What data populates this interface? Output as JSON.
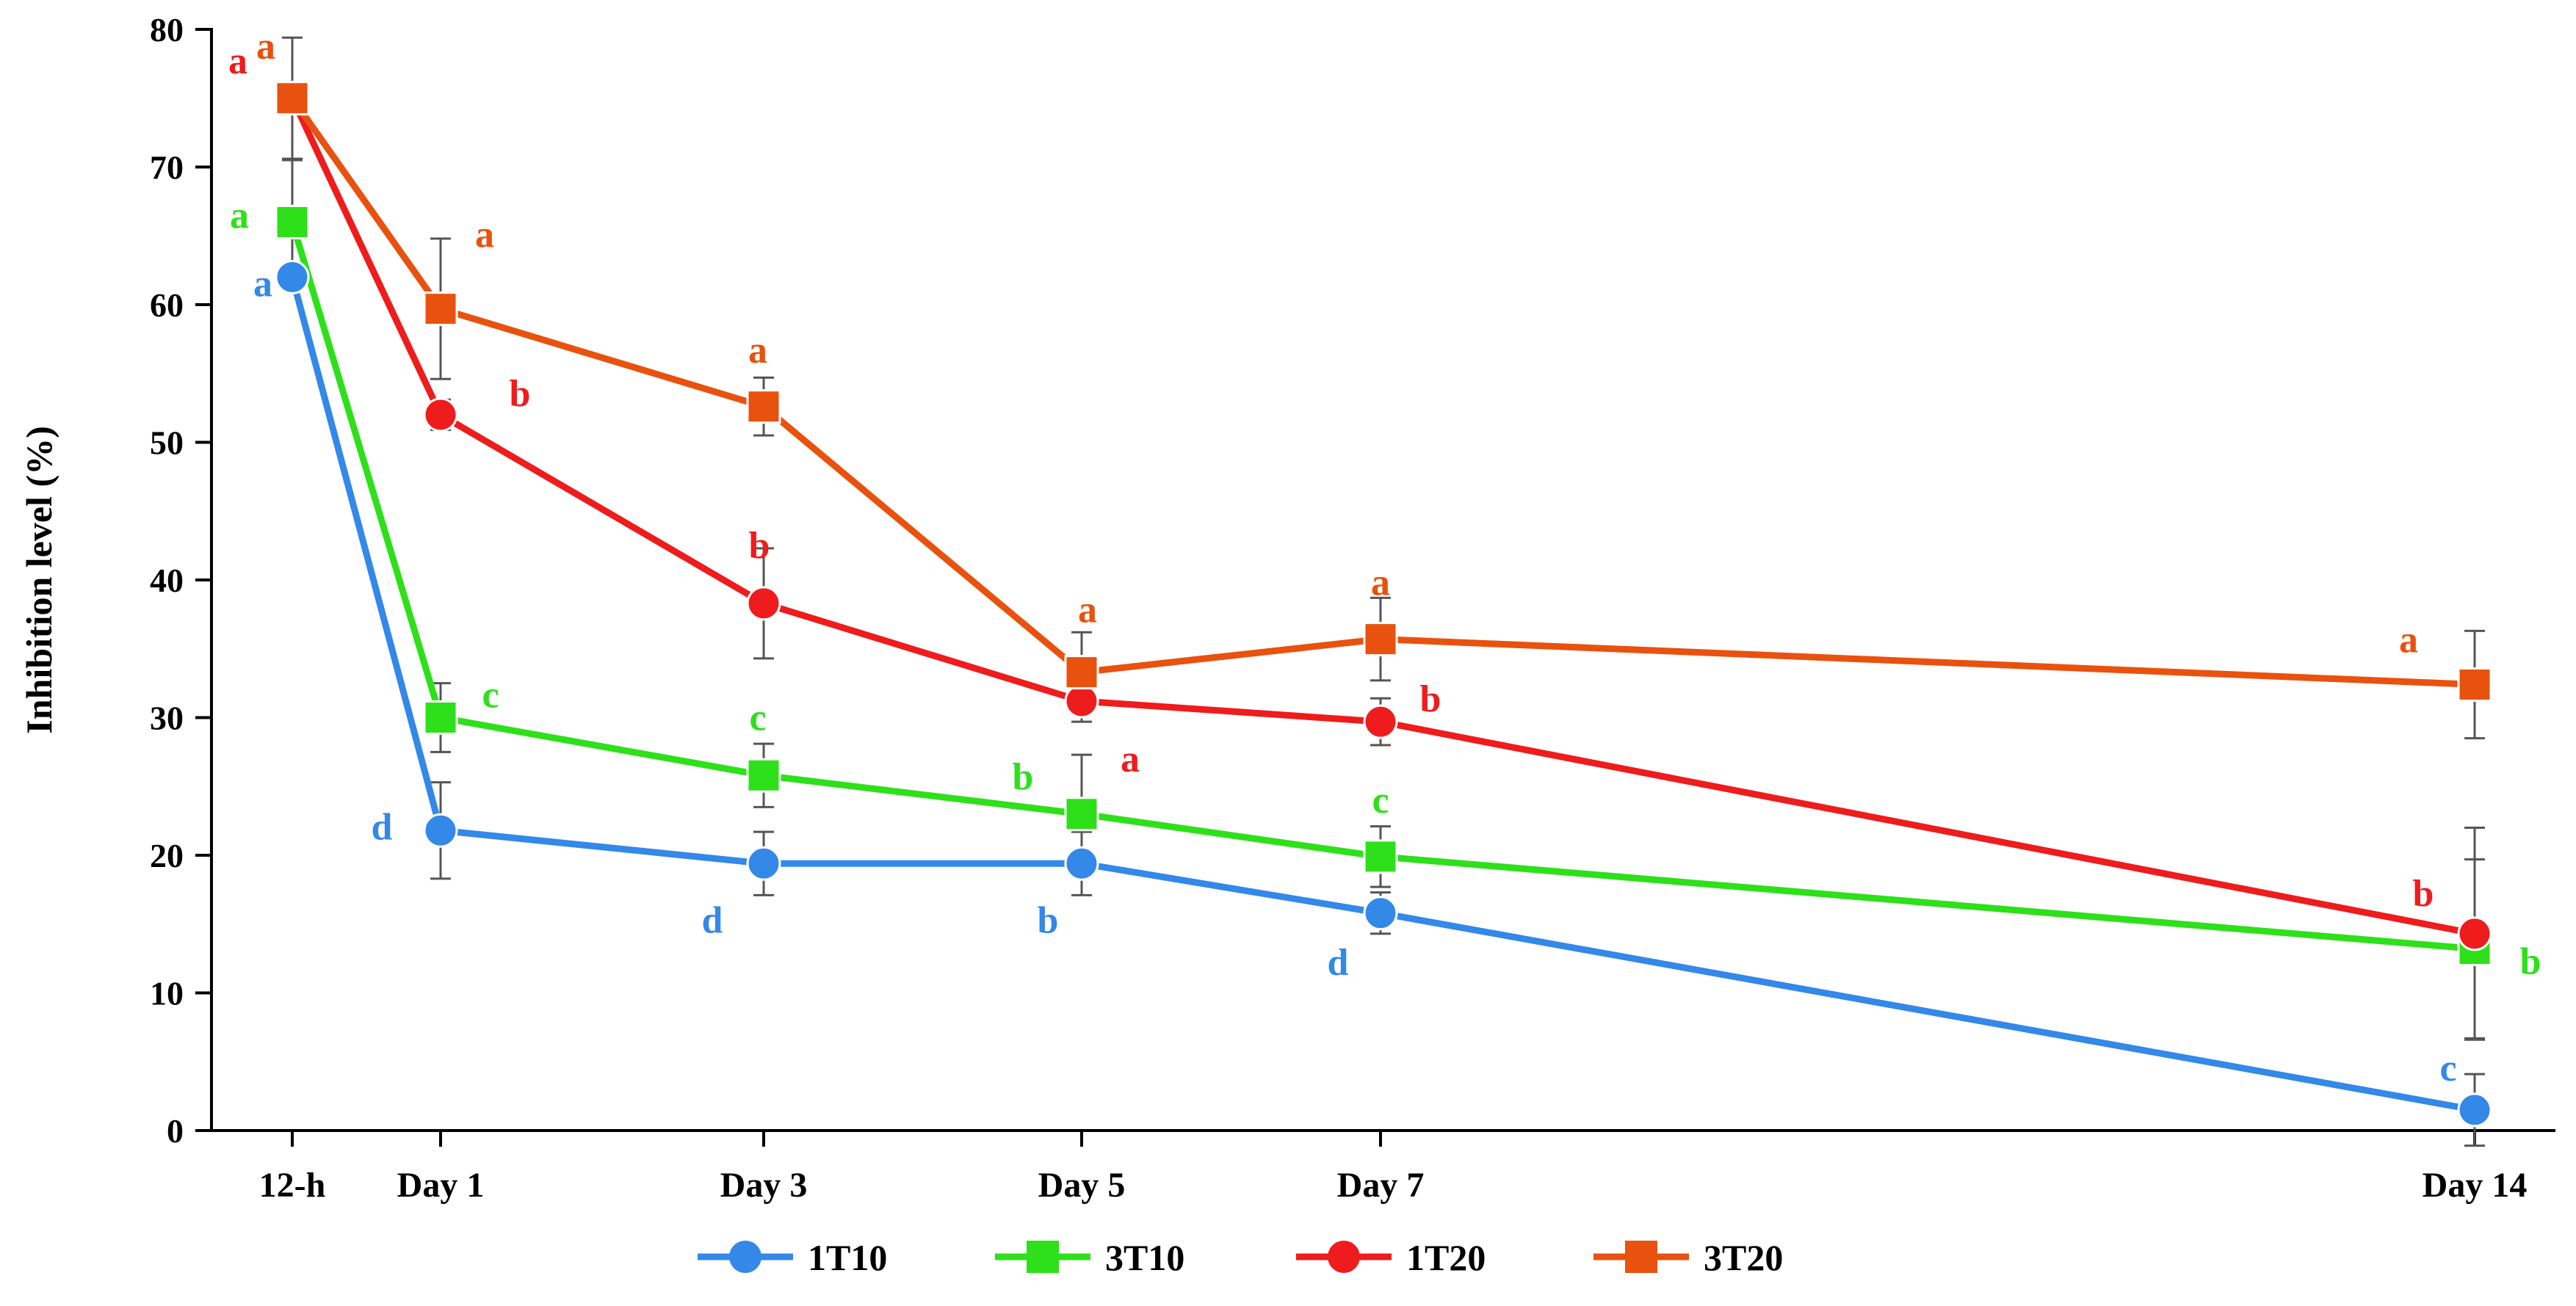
{
  "chart_data": {
    "type": "line",
    "title": "",
    "xlabel": "",
    "ylabel": "Inhibition level (%)",
    "ylim": [
      0,
      80
    ],
    "yticks": [
      "0",
      "10",
      "20",
      "30",
      "40",
      "50",
      "60",
      "70",
      "80"
    ],
    "categories": [
      "12-h",
      "Day 1",
      "Day 3",
      "Day 5",
      "Day 7",
      "Day 14"
    ],
    "x": [
      -0.5,
      1,
      3,
      5,
      7,
      14
    ],
    "legend_position": "bottom",
    "series": [
      {
        "name": "1T10",
        "color": "#3388e8",
        "marker": "circle",
        "values": [
          62,
          21.8,
          19.4,
          19.4,
          15.8,
          1.5
        ],
        "errors": [
          0,
          3.5,
          2.3,
          2.3,
          1.5,
          2.6
        ],
        "letters": [
          "a",
          "d",
          "d",
          "b",
          "d",
          "c"
        ]
      },
      {
        "name": "3T10",
        "color": "#2ee01a",
        "marker": "square",
        "values": [
          66,
          30,
          25.8,
          23,
          19.9,
          13.2
        ],
        "errors": [
          4.5,
          2.5,
          2.3,
          4.3,
          2.2,
          6.5
        ],
        "letters": [
          "a",
          "c",
          "c",
          "b",
          "c",
          "b"
        ]
      },
      {
        "name": "1T20",
        "color": "#ee1c1c",
        "marker": "circle",
        "values": [
          75,
          52,
          38.3,
          31.2,
          29.7,
          14.3
        ],
        "errors": [
          0,
          1.1,
          4,
          1.5,
          1.7,
          7.7
        ],
        "letters": [
          "a",
          "b",
          "b",
          "a",
          "b",
          "b"
        ]
      },
      {
        "name": "3T20",
        "color": "#e8520e",
        "marker": "square",
        "values": [
          75,
          59.7,
          52.6,
          33.3,
          35.7,
          32.4
        ],
        "errors": [
          4.4,
          5.1,
          2.1,
          2.9,
          3,
          3.9
        ],
        "letters": [
          "a",
          "a",
          "a",
          "a",
          "a",
          "a"
        ]
      }
    ]
  }
}
